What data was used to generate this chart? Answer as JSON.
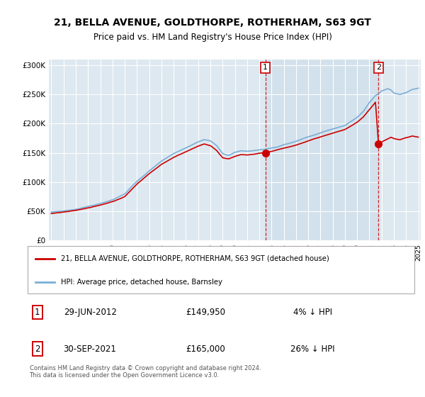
{
  "title": "21, BELLA AVENUE, GOLDTHORPE, ROTHERHAM, S63 9GT",
  "subtitle": "Price paid vs. HM Land Registry's House Price Index (HPI)",
  "title_fontsize": 10,
  "subtitle_fontsize": 8.5,
  "background_color": "#ffffff",
  "plot_bg_color": "#dde8f0",
  "plot_bg_highlight": "#ccdde8",
  "grid_color": "#ffffff",
  "legend_label_red": "21, BELLA AVENUE, GOLDTHORPE, ROTHERHAM, S63 9GT (detached house)",
  "legend_label_blue": "HPI: Average price, detached house, Barnsley",
  "annotation1_date": "29-JUN-2012",
  "annotation1_price": "£149,950",
  "annotation1_hpi": "4% ↓ HPI",
  "annotation2_date": "30-SEP-2021",
  "annotation2_price": "£165,000",
  "annotation2_hpi": "26% ↓ HPI",
  "footer": "Contains HM Land Registry data © Crown copyright and database right 2024.\nThis data is licensed under the Open Government Licence v3.0.",
  "red_color": "#cc0000",
  "blue_color": "#7aaed6",
  "ylim": [
    0,
    310000
  ],
  "yticks": [
    0,
    50000,
    100000,
    150000,
    200000,
    250000,
    300000
  ],
  "ytick_labels": [
    "£0",
    "£50K",
    "£100K",
    "£150K",
    "£200K",
    "£250K",
    "£300K"
  ],
  "marker1_x": 2012.5,
  "marker1_y": 149950,
  "marker2_x": 2021.75,
  "marker2_y": 165000,
  "vline1_x": 2012.5,
  "vline2_x": 2021.75,
  "xmin": 1994.8,
  "xmax": 2025.2
}
